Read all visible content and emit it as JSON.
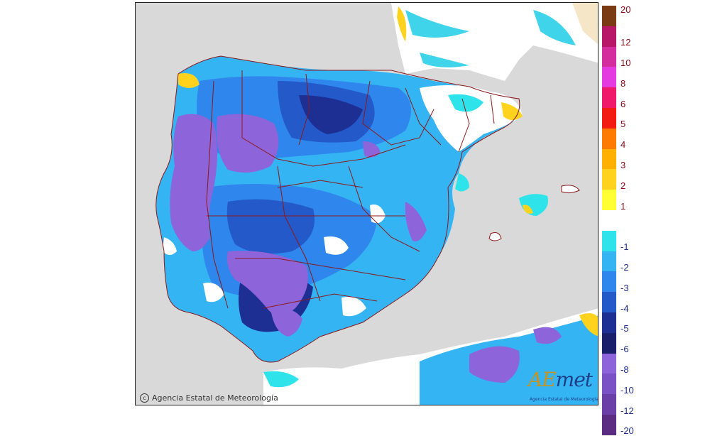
{
  "map": {
    "copyright": "Agencia Estatal de Meteorología",
    "copyright_icon": "copyright-icon",
    "logo": {
      "ae": "AE",
      "met": "met",
      "subtitle": "Agencia Estatal de Meteorología"
    }
  },
  "colors": {
    "land_outside": "#d9d9d9",
    "sea": "#d9d9d9",
    "border_lines": "#8b1a1a"
  },
  "legend": {
    "items": [
      {
        "label": "20",
        "color": "#7a3b14"
      },
      {
        "label": "12",
        "color": "#b81667"
      },
      {
        "label": "10",
        "color": "#d42d9d"
      },
      {
        "label": "8",
        "color": "#e33be0"
      },
      {
        "label": "6",
        "color": "#f0186b"
      },
      {
        "label": "5",
        "color": "#f21a12"
      },
      {
        "label": "4",
        "color": "#ff7a00"
      },
      {
        "label": "3",
        "color": "#ffb000"
      },
      {
        "label": "2",
        "color": "#ffd21e"
      },
      {
        "label": "1",
        "color": "#ffff33"
      },
      {
        "label": "",
        "color": "#ffffff"
      },
      {
        "label": "-1",
        "color": "#2ee4ea"
      },
      {
        "label": "-2",
        "color": "#35b4f4"
      },
      {
        "label": "-3",
        "color": "#2f86ec"
      },
      {
        "label": "-4",
        "color": "#2359c9"
      },
      {
        "label": "-5",
        "color": "#1e2f93"
      },
      {
        "label": "-6",
        "color": "#1a1f6b"
      },
      {
        "label": "-8",
        "color": "#8d64d9"
      },
      {
        "label": "-10",
        "color": "#7a52c6"
      },
      {
        "label": "-12",
        "color": "#6a3fa8"
      },
      {
        "label": "-20",
        "color": "#5a2d82"
      }
    ]
  }
}
